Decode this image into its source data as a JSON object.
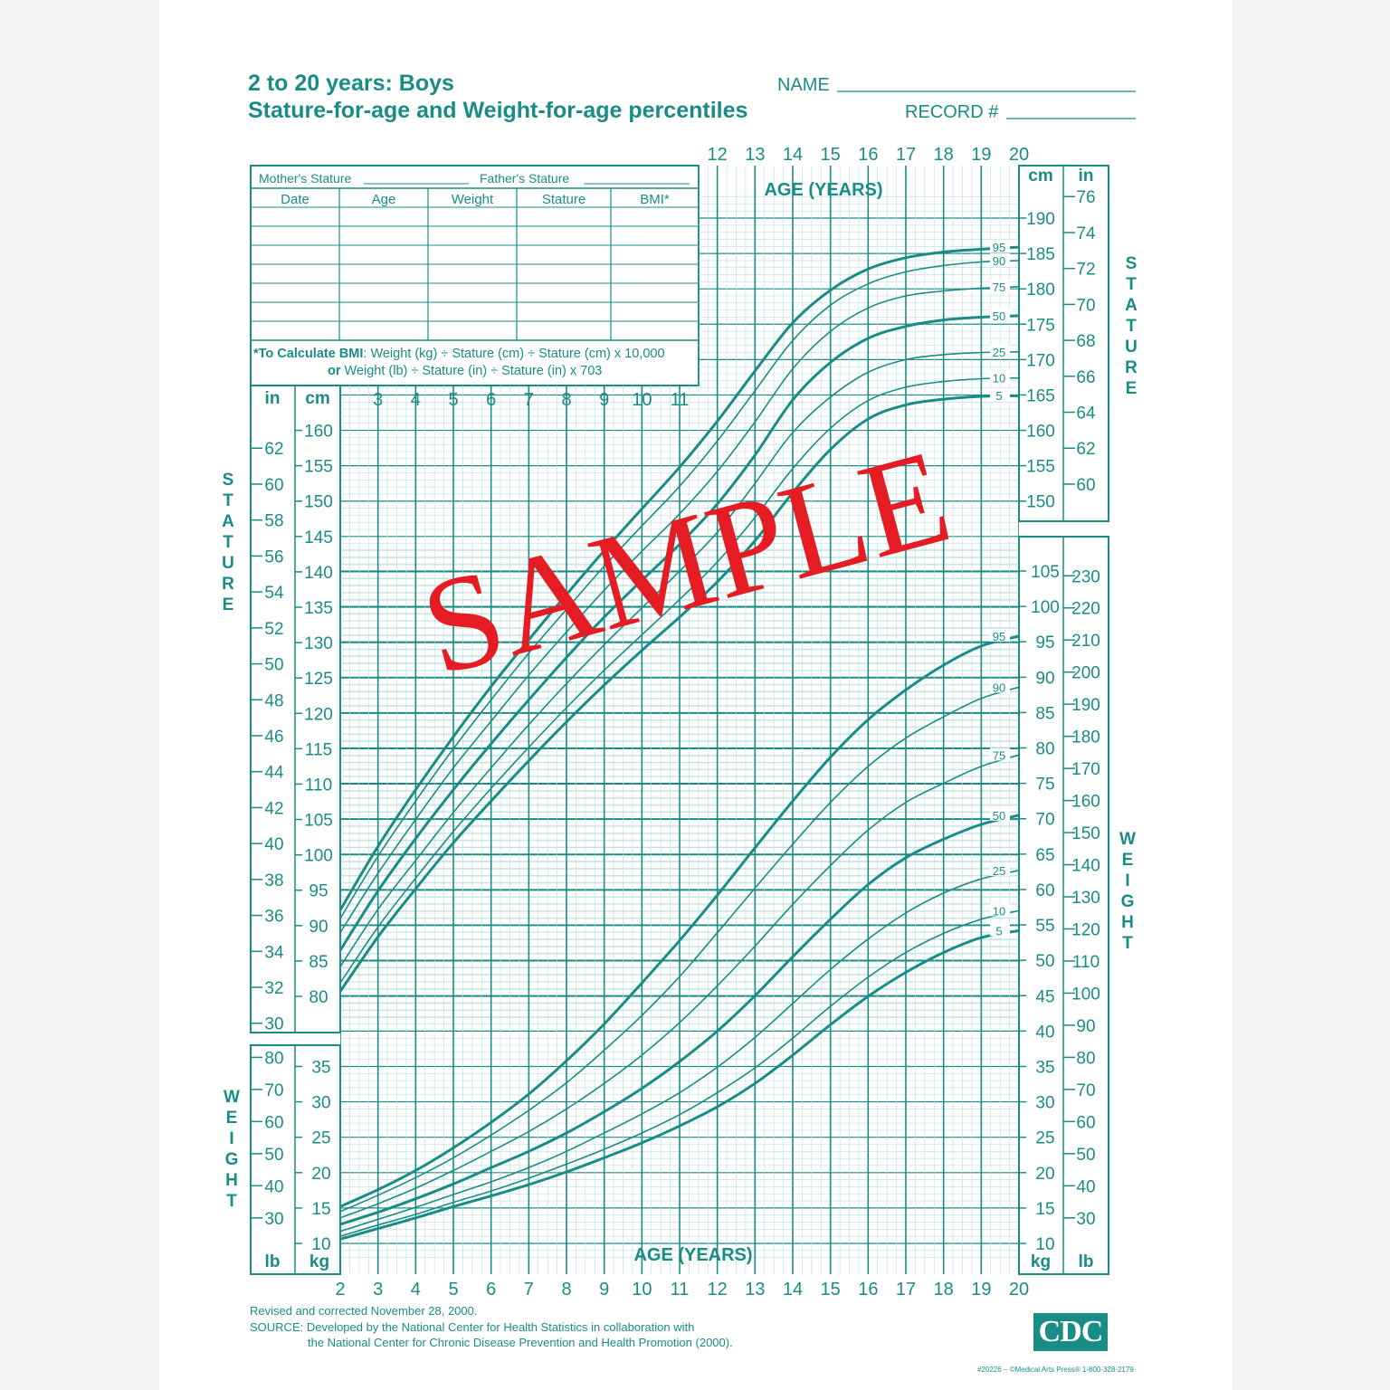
{
  "header": {
    "title_line1": "2 to 20 years: Boys",
    "title_line2": "Stature-for-age and Weight-for-age percentiles",
    "name_label": "NAME",
    "record_label": "RECORD #"
  },
  "record_table": {
    "mothers_stature": "Mother's Stature",
    "fathers_stature": "Father's Stature",
    "columns": [
      "Date",
      "Age",
      "Weight",
      "Stature",
      "BMI*"
    ],
    "bmi_note_bold": "*To Calculate BMI",
    "bmi_note_rest": ": Weight (kg) ÷ Stature (cm) ÷ Stature (cm) x 10,000",
    "bmi_note_line2_bold": "or",
    "bmi_note_line2_rest": " Weight (lb) ÷ Stature (in) ÷ Stature (in) x 703"
  },
  "footer": {
    "revised": "Revised and corrected November 28, 2000.",
    "source_line1": "SOURCE: Developed by the National Center for Health Statistics in collaboration with",
    "source_line2": "the National Center for Chronic Disease Prevention and Health Promotion (2000).",
    "publisher": "#20226 – ©Medical Arts Press® 1-800-328-2179",
    "logo": "CDC"
  },
  "watermark": "SAMPLE",
  "colors": {
    "ink": "#1a8c86",
    "grid_minor": "#b9dedb",
    "watermark": "#e61c24"
  },
  "chart_data": {
    "type": "line",
    "x_axis": {
      "label": "AGE (YEARS)",
      "range": [
        2,
        20
      ],
      "ticks": [
        2,
        3,
        4,
        5,
        6,
        7,
        8,
        9,
        10,
        11,
        12,
        13,
        14,
        15,
        16,
        17,
        18,
        19,
        20
      ]
    },
    "stature": {
      "axis_label": "STATURE",
      "units": [
        "in",
        "cm"
      ],
      "cm_range": [
        77,
        193
      ],
      "cm_ticks_left": [
        80,
        85,
        90,
        95,
        100,
        105,
        110,
        115,
        120,
        125,
        130,
        135,
        140,
        145,
        150,
        155,
        160
      ],
      "cm_ticks_right": [
        150,
        155,
        160,
        165,
        170,
        175,
        180,
        185,
        190
      ],
      "in_ticks_left": [
        30,
        32,
        34,
        36,
        38,
        40,
        42,
        44,
        46,
        48,
        50,
        52,
        54,
        56,
        58,
        60,
        62
      ],
      "in_ticks_right": [
        60,
        62,
        64,
        66,
        68,
        70,
        72,
        74,
        76
      ],
      "series": [
        {
          "name": "5",
          "x": [
            2,
            3,
            4,
            5,
            6,
            7,
            8,
            9,
            10,
            11,
            12,
            13,
            14,
            15,
            16,
            17,
            18,
            19,
            20
          ],
          "values": [
            80.7,
            88.4,
            95.2,
            101.7,
            107.6,
            113.3,
            118.8,
            124,
            128.9,
            133.6,
            138.6,
            144.4,
            151.2,
            157.3,
            161.6,
            163.6,
            164.4,
            164.8,
            164.9
          ]
        },
        {
          "name": "10",
          "x": [
            2,
            3,
            4,
            5,
            6,
            7,
            8,
            9,
            10,
            11,
            12,
            13,
            14,
            15,
            16,
            17,
            18,
            19,
            20
          ],
          "values": [
            81.9,
            89.8,
            96.7,
            103.3,
            109.4,
            115.2,
            120.8,
            126.1,
            131.1,
            136.1,
            141.4,
            147.7,
            154.6,
            160.3,
            164.2,
            166.1,
            166.9,
            167.3,
            167.4
          ]
        },
        {
          "name": "25",
          "x": [
            2,
            3,
            4,
            5,
            6,
            7,
            8,
            9,
            10,
            11,
            12,
            13,
            14,
            15,
            16,
            17,
            18,
            19,
            20
          ],
          "values": [
            84.2,
            92.3,
            99.2,
            106,
            112.3,
            118.4,
            124.2,
            129.7,
            134.9,
            140.1,
            145.6,
            152.5,
            159.7,
            164.7,
            168.2,
            170,
            170.7,
            171,
            171.1
          ]
        },
        {
          "name": "50",
          "x": [
            2,
            3,
            4,
            5,
            6,
            7,
            8,
            9,
            10,
            11,
            12,
            13,
            14,
            15,
            16,
            17,
            18,
            19,
            20
          ],
          "values": [
            86.5,
            94.9,
            102.3,
            109.2,
            115.7,
            121.9,
            127.9,
            133.6,
            138.8,
            143.9,
            149.6,
            156.5,
            164.3,
            169.6,
            173,
            174.7,
            175.6,
            176,
            176.2
          ]
        },
        {
          "name": "75",
          "x": [
            2,
            3,
            4,
            5,
            6,
            7,
            8,
            9,
            10,
            11,
            12,
            13,
            14,
            15,
            16,
            17,
            18,
            19,
            20
          ],
          "values": [
            89,
            97.4,
            105,
            112.3,
            118.9,
            125.4,
            131.5,
            137.4,
            142.9,
            148.2,
            154.2,
            161.2,
            168.7,
            174,
            177.3,
            179,
            179.7,
            180.1,
            180.3
          ]
        },
        {
          "name": "90",
          "x": [
            2,
            3,
            4,
            5,
            6,
            7,
            8,
            9,
            10,
            11,
            12,
            13,
            14,
            15,
            16,
            17,
            18,
            19,
            20
          ],
          "values": [
            91,
            99.8,
            107.6,
            115,
            121.9,
            128.5,
            134.7,
            140.8,
            146.5,
            152.1,
            158.5,
            165.6,
            172.7,
            177.7,
            180.7,
            182.4,
            183.3,
            183.8,
            184
          ]
        },
        {
          "name": "95",
          "x": [
            2,
            3,
            4,
            5,
            6,
            7,
            8,
            9,
            10,
            11,
            12,
            13,
            14,
            15,
            16,
            17,
            18,
            19,
            20
          ],
          "values": [
            92.2,
            101.2,
            109.2,
            116.7,
            123.8,
            130.4,
            136.8,
            143,
            148.9,
            154.8,
            161.3,
            168.4,
            175.2,
            179.8,
            182.8,
            184.4,
            185.2,
            185.6,
            185.9
          ]
        }
      ]
    },
    "weight": {
      "axis_label": "WEIGHT",
      "units": [
        "lb",
        "kg"
      ],
      "kg_range": [
        8,
        108
      ],
      "kg_ticks_left": [
        10,
        15,
        20,
        25,
        30,
        35
      ],
      "kg_ticks_right": [
        10,
        15,
        20,
        25,
        30,
        35,
        40,
        45,
        50,
        55,
        60,
        65,
        70,
        75,
        80,
        85,
        90,
        95,
        100,
        105
      ],
      "lb_ticks_left": [
        30,
        40,
        50,
        60,
        70,
        80
      ],
      "lb_ticks_right": [
        30,
        40,
        50,
        60,
        70,
        80,
        90,
        100,
        110,
        120,
        130,
        140,
        150,
        160,
        170,
        180,
        190,
        200,
        210,
        220,
        230
      ],
      "series": [
        {
          "name": "5",
          "x": [
            2,
            3,
            4,
            5,
            6,
            7,
            8,
            9,
            10,
            11,
            12,
            13,
            14,
            15,
            16,
            17,
            18,
            19,
            20
          ],
          "values": [
            10.6,
            12.1,
            13.6,
            15.2,
            16.7,
            18.3,
            20.1,
            22.1,
            24.2,
            26.6,
            29.3,
            32.6,
            36.6,
            40.9,
            44.9,
            48.3,
            51.1,
            53.2,
            54.2
          ]
        },
        {
          "name": "10",
          "x": [
            2,
            3,
            4,
            5,
            6,
            7,
            8,
            9,
            10,
            11,
            12,
            13,
            14,
            15,
            16,
            17,
            18,
            19,
            20
          ],
          "values": [
            11,
            12.6,
            14.1,
            15.8,
            17.4,
            19.2,
            21.2,
            23.3,
            25.6,
            28.2,
            31.3,
            34.8,
            39,
            43.5,
            47.6,
            51.1,
            53.8,
            55.8,
            57
          ]
        },
        {
          "name": "25",
          "x": [
            2,
            3,
            4,
            5,
            6,
            7,
            8,
            9,
            10,
            11,
            12,
            13,
            14,
            15,
            16,
            17,
            18,
            19,
            20
          ],
          "values": [
            11.7,
            13.4,
            15.1,
            16.9,
            18.7,
            20.7,
            23,
            25.6,
            28.3,
            31.3,
            34.9,
            39.1,
            43.9,
            48.7,
            53,
            56.7,
            59.5,
            61.5,
            62.7
          ]
        },
        {
          "name": "50",
          "x": [
            2,
            3,
            4,
            5,
            6,
            7,
            8,
            9,
            10,
            11,
            12,
            13,
            14,
            15,
            16,
            17,
            18,
            19,
            20
          ],
          "values": [
            12.7,
            14.4,
            16.3,
            18.4,
            20.7,
            23,
            25.6,
            28.6,
            31.9,
            35.7,
            40,
            45,
            50.5,
            55.8,
            60.7,
            64.5,
            67.1,
            69.2,
            70.5
          ]
        },
        {
          "name": "75",
          "x": [
            2,
            3,
            4,
            5,
            6,
            7,
            8,
            9,
            10,
            11,
            12,
            13,
            14,
            15,
            16,
            17,
            18,
            19,
            20
          ],
          "values": [
            13.6,
            15.6,
            17.8,
            20.3,
            23,
            25.8,
            29,
            32.6,
            36.6,
            41.2,
            46.4,
            52,
            57.9,
            63.4,
            68.4,
            72.3,
            75,
            77.4,
            79
          ]
        },
        {
          "name": "90",
          "x": [
            2,
            3,
            4,
            5,
            6,
            7,
            8,
            9,
            10,
            11,
            12,
            13,
            14,
            15,
            16,
            17,
            18,
            19,
            20
          ],
          "values": [
            14.5,
            16.8,
            19.3,
            22.1,
            25.3,
            28.8,
            32.7,
            37.3,
            42.2,
            47.7,
            53.9,
            60.2,
            66.4,
            72.3,
            77.4,
            81.4,
            84.4,
            87,
            88.6
          ]
        },
        {
          "name": "95",
          "x": [
            2,
            3,
            4,
            5,
            6,
            7,
            8,
            9,
            10,
            11,
            12,
            13,
            14,
            15,
            16,
            17,
            18,
            19,
            20
          ],
          "values": [
            15.2,
            17.6,
            20.3,
            23.5,
            27.1,
            31.1,
            35.8,
            41,
            46.8,
            52.8,
            59.2,
            65.9,
            72.5,
            78.7,
            84,
            88.2,
            91.7,
            94.4,
            95.8
          ]
        }
      ]
    }
  }
}
